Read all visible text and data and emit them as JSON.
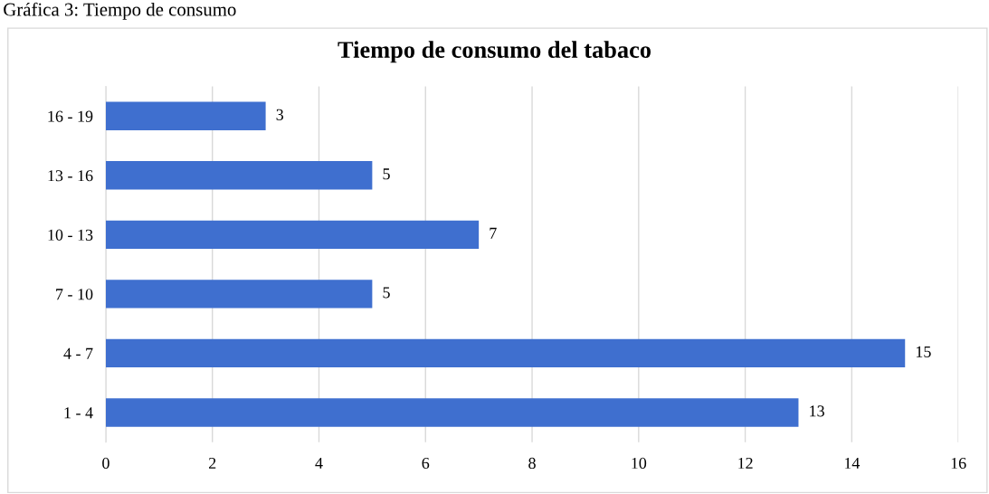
{
  "chart_data": {
    "type": "bar",
    "orientation": "horizontal",
    "title": "Tiempo de consumo del tabaco",
    "annotations": [
      "Gráfica 3: Tiempo de consumo"
    ],
    "categories": [
      "16 - 19",
      "13 - 16",
      "10 - 13",
      "7 - 10",
      "4 - 7",
      "1 - 4"
    ],
    "values": [
      3,
      5,
      7,
      5,
      15,
      13
    ],
    "color": "#3f6fcf",
    "xlim": [
      0,
      16
    ],
    "xticks": [
      0,
      2,
      4,
      6,
      8,
      10,
      12,
      14,
      16
    ],
    "grid": "x",
    "data_labels": true
  }
}
